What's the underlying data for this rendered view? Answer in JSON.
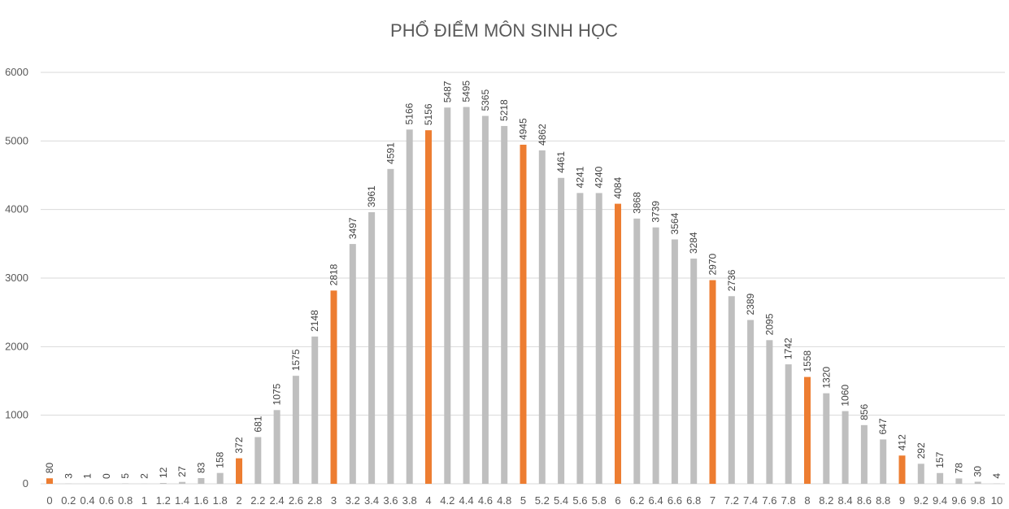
{
  "chart_data": {
    "type": "bar",
    "title": "PHỔ ĐIỂM MÔN SINH HỌC",
    "xlabel": "",
    "ylabel": "",
    "ylim": [
      0,
      6000
    ],
    "yticks": [
      0,
      1000,
      2000,
      3000,
      4000,
      5000,
      6000
    ],
    "grid": true,
    "legend": "none",
    "colors": {
      "default": "#BFBFBF",
      "highlight": "#ED7D31",
      "grid": "#D9D9D9",
      "text": "#595959"
    },
    "categories": [
      "0",
      "0.2",
      "0.4",
      "0.6",
      "0.8",
      "1",
      "1.2",
      "1.4",
      "1.6",
      "1.8",
      "2",
      "2.2",
      "2.4",
      "2.6",
      "2.8",
      "3",
      "3.2",
      "3.4",
      "3.6",
      "3.8",
      "4",
      "4.2",
      "4.4",
      "4.6",
      "4.8",
      "5",
      "5.2",
      "5.4",
      "5.6",
      "5.8",
      "6",
      "6.2",
      "6.4",
      "6.6",
      "6.8",
      "7",
      "7.2",
      "7.4",
      "7.6",
      "7.8",
      "8",
      "8.2",
      "8.4",
      "8.6",
      "8.8",
      "9",
      "9.2",
      "9.4",
      "9.6",
      "9.8",
      "10"
    ],
    "values": [
      80,
      3,
      1,
      0,
      5,
      2,
      12,
      27,
      83,
      158,
      372,
      681,
      1075,
      1575,
      2148,
      2818,
      3497,
      3961,
      4591,
      5166,
      5156,
      5487,
      5495,
      5365,
      5218,
      4945,
      4862,
      4461,
      4241,
      4240,
      4084,
      3868,
      3739,
      3564,
      3284,
      2970,
      2736,
      2389,
      2095,
      1742,
      1558,
      1320,
      1060,
      856,
      647,
      412,
      292,
      157,
      78,
      30,
      4
    ],
    "highlighted_categories": [
      "0",
      "2",
      "3",
      "4",
      "5",
      "6",
      "7",
      "8",
      "9"
    ]
  }
}
